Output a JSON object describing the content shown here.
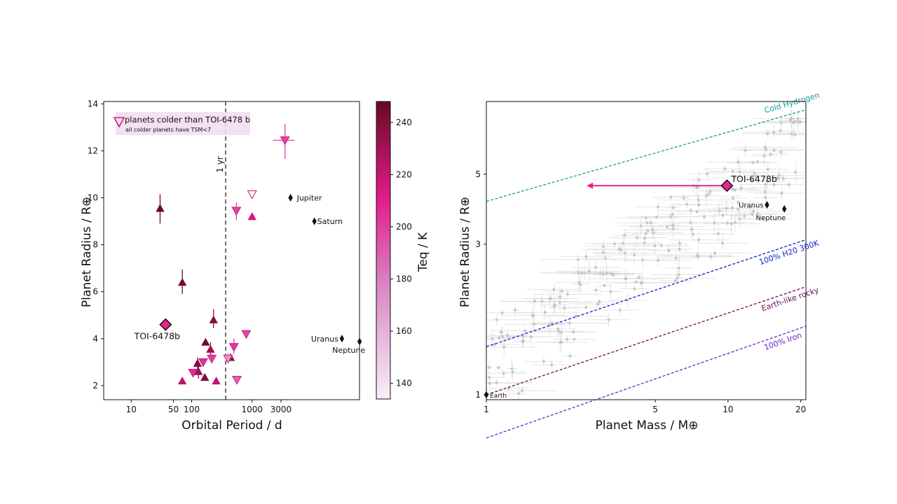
{
  "chart_data": [
    {
      "type": "scatter",
      "panel": "left",
      "xlabel": "Orbital Period / d",
      "ylabel": "Planet Radius / R⊕",
      "xscale": "log",
      "xlim": [
        3.5,
        60000
      ],
      "ylim": [
        1.4,
        14.1
      ],
      "xticks": [
        {
          "value": 10,
          "label": "10"
        },
        {
          "value": 50,
          "label": "50"
        },
        {
          "value": 100,
          "label": "100"
        },
        {
          "value": 1000,
          "label": "1000"
        },
        {
          "value": 3000,
          "label": "3000"
        }
      ],
      "yticks": [
        {
          "value": 2,
          "label": "2"
        },
        {
          "value": 4,
          "label": "4"
        },
        {
          "value": 6,
          "label": "6"
        },
        {
          "value": 8,
          "label": "8"
        },
        {
          "value": 10,
          "label": "10"
        },
        {
          "value": 12,
          "label": "12"
        },
        {
          "value": 14,
          "label": "14"
        }
      ],
      "vline": {
        "x": 365,
        "label": "1 yr"
      },
      "colorbar": {
        "label": "Teq / K",
        "min": 134,
        "max": 248,
        "ticks": [
          140,
          160,
          180,
          200,
          220,
          240
        ]
      },
      "legend": {
        "location": "top-left",
        "entry": "planets colder than TOI-6478 b",
        "note": "all colder planets have TSM<7"
      },
      "highlight": {
        "name": "TOI-6478b",
        "x": 37,
        "y": 4.6,
        "teq": 210
      },
      "solar_system": [
        {
          "name": "Jupiter",
          "x": 4333,
          "y": 10.0
        },
        {
          "name": "Saturn",
          "x": 10759,
          "y": 9.0
        },
        {
          "name": "Uranus",
          "x": 30687,
          "y": 4.0
        },
        {
          "name": "Neptune",
          "x": 60190,
          "y": 3.88
        }
      ],
      "series": [
        {
          "name": "warmer planets",
          "marker": "triangle-up",
          "points": [
            {
              "x": 30,
              "y": 9.55,
              "teq": 246,
              "yerr": [
                0.65,
                0.6
              ]
            },
            {
              "x": 70,
              "y": 6.4,
              "teq": 244,
              "yerr": [
                0.5,
                0.55
              ]
            },
            {
              "x": 230,
              "y": 4.8,
              "teq": 238,
              "yerr": [
                0.35,
                0.45
              ]
            },
            {
              "x": 70,
              "y": 2.2,
              "teq": 222
            },
            {
              "x": 125,
              "y": 2.95,
              "teq": 240,
              "yerr": [
                0.25,
                0.25
              ]
            },
            {
              "x": 130,
              "y": 2.6,
              "teq": 232,
              "yerr": [
                0.3,
                0.35
              ]
            },
            {
              "x": 170,
              "y": 3.85,
              "teq": 244
            },
            {
              "x": 165,
              "y": 2.35,
              "teq": 240
            },
            {
              "x": 205,
              "y": 3.55,
              "teq": 232,
              "yerr": [
                0.25,
                0.3
              ]
            },
            {
              "x": 255,
              "y": 2.2,
              "teq": 222
            },
            {
              "x": 440,
              "y": 3.2,
              "teq": 238
            },
            {
              "x": 1000,
              "y": 9.2,
              "teq": 216
            }
          ]
        },
        {
          "name": "colder planets",
          "marker": "triangle-down",
          "points": [
            {
              "x": 3500,
              "y": 12.45,
              "teq": 198,
              "yerr": [
                0.8,
                0.7
              ],
              "xerr": [
                1300,
                1500
              ]
            },
            {
              "x": 1000,
              "y": 10.15,
              "teq": 134,
              "yerr": [
                0.35,
                0.4
              ]
            },
            {
              "x": 550,
              "y": 9.45,
              "teq": 198,
              "yerr": [
                0.4,
                0.35
              ]
            },
            {
              "x": 500,
              "y": 3.65,
              "teq": 202,
              "yerr": [
                0.3,
                0.35
              ]
            },
            {
              "x": 800,
              "y": 4.2,
              "teq": 196
            },
            {
              "x": 215,
              "y": 3.15,
              "teq": 200,
              "yerr": [
                0.2,
                0.2
              ]
            },
            {
              "x": 155,
              "y": 3.0,
              "teq": 204
            },
            {
              "x": 105,
              "y": 2.55,
              "teq": 206
            },
            {
              "x": 400,
              "y": 3.15,
              "teq": 170,
              "yerr": [
                0.2,
                0.25
              ]
            },
            {
              "x": 560,
              "y": 2.25,
              "teq": 188
            }
          ]
        }
      ]
    },
    {
      "type": "scatter",
      "panel": "right",
      "xlabel": "Planet Mass / M⊕",
      "ylabel": "Planet Radius / R⊕",
      "xscale": "log",
      "yscale": "log",
      "xlim": [
        1,
        21
      ],
      "ylim": [
        0.965,
        8.5
      ],
      "xticks": [
        {
          "value": 1,
          "label": "1"
        },
        {
          "value": 5,
          "label": "5"
        },
        {
          "value": 10,
          "label": "10"
        },
        {
          "value": 20,
          "label": "20"
        }
      ],
      "yticks": [
        {
          "value": 1,
          "label": "1"
        },
        {
          "value": 3,
          "label": "3"
        },
        {
          "value": 5,
          "label": "5"
        }
      ],
      "highlight": {
        "name": "TOI-6478b",
        "mass": 9.9,
        "radius": 4.6,
        "upper_limit_arrow_to": 2.6
      },
      "solar_system": [
        {
          "name": "Earth",
          "mass": 1.0,
          "radius": 1.0
        },
        {
          "name": "Uranus",
          "mass": 14.5,
          "radius": 4.0
        },
        {
          "name": "Neptune",
          "mass": 17.1,
          "radius": 3.88
        }
      ],
      "models": [
        {
          "name": "Cold Hydrogen",
          "color": "#179c96",
          "r_at_1": 4.1,
          "r_at_21": 8.0
        },
        {
          "name": "100% H20 300K",
          "color": "#1020c8",
          "r_at_1": 1.42,
          "r_at_21": 3.1
        },
        {
          "name": "Earth-like rocky",
          "color": "#6a0a5a",
          "r_at_1": 1.0,
          "r_at_21": 2.2
        },
        {
          "name": "100% Iron",
          "color": "#6a1fd0",
          "r_at_1": 0.73,
          "r_at_21": 1.65
        }
      ],
      "background_population": "~220 known sub-Neptunes and super-Earths plotted in grey with error bars"
    }
  ],
  "colors": {
    "marker_light": "#f7f0f7",
    "marker_mid": "#d986c4",
    "marker_hot": "#e31a8a",
    "marker_dark": "#640a24",
    "highlight": "#e8248d",
    "legend_bg": "#f0dcef"
  }
}
